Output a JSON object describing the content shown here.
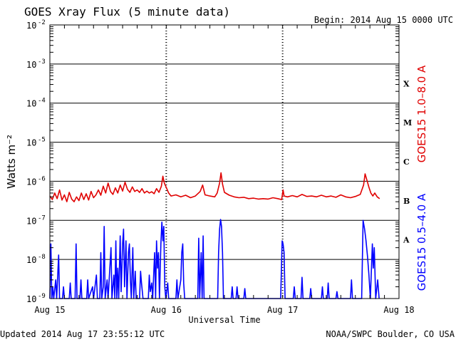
{
  "header": {
    "title": "GOES Xray Flux (5 minute data)",
    "begin": "Begin:  2014 Aug 15 0000 UTC"
  },
  "footer": {
    "updated": "Updated 2014 Aug 17 23:55:12 UTC",
    "credit": "NOAA/SWPC Boulder, CO USA"
  },
  "colors": {
    "long_channel": "#e00000",
    "short_channel": "#0000ff"
  },
  "chart_data": {
    "type": "line",
    "title": "GOES Xray Flux (5 minute data)",
    "xlabel": "Universal Time",
    "ylabel": "Watts m⁻²",
    "yscale": "log",
    "ylim": [
      1e-09,
      0.01
    ],
    "xlim": [
      0,
      72
    ],
    "x_unit": "hours since 2014 Aug 15 0000 UTC",
    "grid": true,
    "x_ticks": [
      {
        "x": 0,
        "label": "Aug 15"
      },
      {
        "x": 24,
        "label": "Aug 16"
      },
      {
        "x": 48,
        "label": "Aug 17"
      },
      {
        "x": 72,
        "label": "Aug 18"
      }
    ],
    "y_ticks": [
      {
        "exp": -2,
        "base": "10",
        "sup": "-2"
      },
      {
        "exp": -3,
        "base": "10",
        "sup": "-3"
      },
      {
        "exp": -4,
        "base": "10",
        "sup": "-4"
      },
      {
        "exp": -5,
        "base": "10",
        "sup": "-5"
      },
      {
        "exp": -6,
        "base": "10",
        "sup": "-6"
      },
      {
        "exp": -7,
        "base": "10",
        "sup": "-7"
      },
      {
        "exp": -8,
        "base": "10",
        "sup": "-8"
      },
      {
        "exp": -9,
        "base": "10",
        "sup": "-9"
      }
    ],
    "flare_classes": [
      {
        "label": "X",
        "exp": -3.5
      },
      {
        "label": "M",
        "exp": -4.5
      },
      {
        "label": "C",
        "exp": -5.5
      },
      {
        "label": "B",
        "exp": -6.5
      },
      {
        "label": "A",
        "exp": -7.5
      }
    ],
    "series": [
      {
        "name": "GOES15 1.0–8.0 A",
        "color": "#e00000",
        "points": [
          [
            0,
            4.2e-07
          ],
          [
            0.5,
            3.4e-07
          ],
          [
            1,
            5e-07
          ],
          [
            1.5,
            3.6e-07
          ],
          [
            2,
            6e-07
          ],
          [
            2.5,
            3.3e-07
          ],
          [
            3,
            4.5e-07
          ],
          [
            3.5,
            3e-07
          ],
          [
            4,
            5.2e-07
          ],
          [
            4.5,
            3.5e-07
          ],
          [
            5,
            3e-07
          ],
          [
            5.5,
            4e-07
          ],
          [
            6,
            3.2e-07
          ],
          [
            6.5,
            5e-07
          ],
          [
            7,
            3.4e-07
          ],
          [
            7.5,
            4.8e-07
          ],
          [
            8,
            3.3e-07
          ],
          [
            8.5,
            5.5e-07
          ],
          [
            9,
            3.8e-07
          ],
          [
            9.5,
            4.5e-07
          ],
          [
            10,
            6e-07
          ],
          [
            10.5,
            4.4e-07
          ],
          [
            11,
            7.5e-07
          ],
          [
            11.5,
            5e-07
          ],
          [
            12,
            9e-07
          ],
          [
            12.5,
            5.5e-07
          ],
          [
            13,
            4.6e-07
          ],
          [
            13.5,
            6.8e-07
          ],
          [
            14,
            5e-07
          ],
          [
            14.5,
            8e-07
          ],
          [
            15,
            5.6e-07
          ],
          [
            15.5,
            9.5e-07
          ],
          [
            16,
            6.2e-07
          ],
          [
            16.5,
            5.2e-07
          ],
          [
            17,
            7.2e-07
          ],
          [
            17.5,
            5.5e-07
          ],
          [
            18,
            6e-07
          ],
          [
            18.5,
            5.2e-07
          ],
          [
            19,
            6.5e-07
          ],
          [
            19.5,
            5e-07
          ],
          [
            20,
            5.6e-07
          ],
          [
            20.5,
            5e-07
          ],
          [
            21,
            5.4e-07
          ],
          [
            21.5,
            4.8e-07
          ],
          [
            22,
            6.5e-07
          ],
          [
            22.5,
            5.2e-07
          ],
          [
            23,
            7.5e-07
          ],
          [
            23.3,
            1.35e-06
          ],
          [
            23.6,
            9e-07
          ],
          [
            24,
            7e-07
          ],
          [
            24.5,
            5e-07
          ],
          [
            25,
            4.2e-07
          ],
          [
            26,
            4.5e-07
          ],
          [
            27,
            4e-07
          ],
          [
            28,
            4.4e-07
          ],
          [
            29,
            3.8e-07
          ],
          [
            30,
            4.2e-07
          ],
          [
            31,
            5.5e-07
          ],
          [
            31.5,
            8e-07
          ],
          [
            32,
            4.5e-07
          ],
          [
            33,
            4.2e-07
          ],
          [
            34,
            4e-07
          ],
          [
            34.5,
            5e-07
          ],
          [
            35,
            9e-07
          ],
          [
            35.3,
            1.65e-06
          ],
          [
            35.6,
            8.5e-07
          ],
          [
            36,
            5.2e-07
          ],
          [
            37,
            4.4e-07
          ],
          [
            38,
            4e-07
          ],
          [
            39,
            3.8e-07
          ],
          [
            40,
            3.9e-07
          ],
          [
            41,
            3.6e-07
          ],
          [
            42,
            3.7e-07
          ],
          [
            43,
            3.5e-07
          ],
          [
            44,
            3.6e-07
          ],
          [
            45,
            3.5e-07
          ],
          [
            46,
            3.8e-07
          ],
          [
            47,
            3.6e-07
          ],
          [
            47.8,
            3.4e-07
          ],
          [
            48.1,
            6e-07
          ],
          [
            48.3,
            4.2e-07
          ],
          [
            49,
            4e-07
          ],
          [
            50,
            4.3e-07
          ],
          [
            51,
            4e-07
          ],
          [
            52,
            4.6e-07
          ],
          [
            53,
            4.1e-07
          ],
          [
            54,
            4.2e-07
          ],
          [
            55,
            4e-07
          ],
          [
            56,
            4.4e-07
          ],
          [
            57,
            4e-07
          ],
          [
            58,
            4.2e-07
          ],
          [
            59,
            3.9e-07
          ],
          [
            60,
            4.5e-07
          ],
          [
            61,
            4e-07
          ],
          [
            62,
            3.8e-07
          ],
          [
            63,
            4.1e-07
          ],
          [
            64,
            4.6e-07
          ],
          [
            64.7,
            8e-07
          ],
          [
            65,
            1.55e-06
          ],
          [
            65.4,
            1.05e-06
          ],
          [
            65.8,
            7e-07
          ],
          [
            66.2,
            5e-07
          ],
          [
            66.6,
            4.2e-07
          ],
          [
            67,
            5e-07
          ],
          [
            67.5,
            4e-07
          ],
          [
            68,
            3.6e-07
          ]
        ]
      },
      {
        "name": "GOES15 0.5–4.0 A",
        "color": "#0000ff",
        "points": [
          [
            0,
            1e-09
          ],
          [
            0.2,
            2.5e-08
          ],
          [
            0.4,
            1e-09
          ],
          [
            0.6,
            2e-09
          ],
          [
            0.8,
            1e-09
          ],
          [
            1.2,
            3e-09
          ],
          [
            1.4,
            1e-09
          ],
          [
            1.8,
            1.3e-08
          ],
          [
            2.0,
            1e-09
          ],
          [
            2.6,
            1e-09
          ],
          [
            2.8,
            2e-09
          ],
          [
            3.0,
            1e-09
          ],
          [
            4.0,
            1e-09
          ],
          [
            4.2,
            2.5e-09
          ],
          [
            4.4,
            1e-09
          ],
          [
            5.2,
            1e-09
          ],
          [
            5.4,
            2.5e-08
          ],
          [
            5.6,
            1e-09
          ],
          [
            6.2,
            1e-09
          ],
          [
            6.4,
            3e-09
          ],
          [
            6.6,
            1e-09
          ],
          [
            7.6,
            1e-09
          ],
          [
            7.8,
            3e-09
          ],
          [
            8.0,
            1e-09
          ],
          [
            8.8,
            2e-09
          ],
          [
            9.0,
            1e-09
          ],
          [
            9.6,
            4e-09
          ],
          [
            9.8,
            1e-09
          ],
          [
            10.3,
            1e-09
          ],
          [
            10.5,
            1.5e-08
          ],
          [
            10.7,
            1e-09
          ],
          [
            11.0,
            2e-09
          ],
          [
            11.2,
            7e-08
          ],
          [
            11.4,
            1e-09
          ],
          [
            11.8,
            3e-09
          ],
          [
            12.0,
            1e-09
          ],
          [
            12.6,
            2e-08
          ],
          [
            12.8,
            1e-09
          ],
          [
            13.2,
            4e-09
          ],
          [
            13.4,
            1e-09
          ],
          [
            13.6,
            3e-08
          ],
          [
            13.8,
            1e-09
          ],
          [
            14.0,
            6e-09
          ],
          [
            14.2,
            1e-09
          ],
          [
            14.5,
            4e-08
          ],
          [
            14.7,
            1.5e-09
          ],
          [
            15.0,
            2.5e-08
          ],
          [
            15.2,
            6e-08
          ],
          [
            15.4,
            2e-09
          ],
          [
            15.7,
            3e-08
          ],
          [
            15.9,
            1e-09
          ],
          [
            16.2,
            1.5e-08
          ],
          [
            16.4,
            2.5e-08
          ],
          [
            16.6,
            3e-09
          ],
          [
            16.8,
            1e-09
          ],
          [
            17.1,
            2e-08
          ],
          [
            17.3,
            1e-09
          ],
          [
            17.6,
            5e-09
          ],
          [
            17.8,
            1e-09
          ],
          [
            18.5,
            1e-09
          ],
          [
            18.7,
            5e-09
          ],
          [
            18.9,
            2.5e-09
          ],
          [
            19.2,
            1e-09
          ],
          [
            20.3,
            1e-09
          ],
          [
            20.5,
            4e-09
          ],
          [
            20.7,
            1.5e-09
          ],
          [
            21.0,
            2.5e-09
          ],
          [
            21.2,
            1e-09
          ],
          [
            21.6,
            1.5e-08
          ],
          [
            21.8,
            1e-09
          ],
          [
            22.0,
            3e-08
          ],
          [
            22.2,
            6e-09
          ],
          [
            22.4,
            1.5e-08
          ],
          [
            22.6,
            1e-09
          ],
          [
            22.9,
            2.5e-08
          ],
          [
            23.1,
            9e-08
          ],
          [
            23.3,
            3e-08
          ],
          [
            23.5,
            7e-08
          ],
          [
            23.7,
            2e-09
          ],
          [
            23.9,
            1e-09
          ],
          [
            24.3,
            2.5e-09
          ],
          [
            24.5,
            1e-09
          ],
          [
            26.0,
            1e-09
          ],
          [
            26.2,
            3e-09
          ],
          [
            26.4,
            1e-09
          ],
          [
            27.0,
            3e-09
          ],
          [
            27.2,
            1.5e-08
          ],
          [
            27.4,
            2.5e-08
          ],
          [
            27.6,
            2.5e-09
          ],
          [
            27.8,
            1e-09
          ],
          [
            29.0,
            1e-09
          ],
          [
            30.5,
            1e-09
          ],
          [
            30.7,
            3.5e-08
          ],
          [
            30.9,
            1e-09
          ],
          [
            31.2,
            1.5e-08
          ],
          [
            31.4,
            1e-09
          ],
          [
            31.6,
            4e-08
          ],
          [
            31.8,
            1e-09
          ],
          [
            33.0,
            1e-09
          ],
          [
            34.6,
            1e-09
          ],
          [
            34.8,
            1.5e-08
          ],
          [
            35.0,
            6e-08
          ],
          [
            35.2,
            1.05e-07
          ],
          [
            35.4,
            7e-08
          ],
          [
            35.6,
            1.5e-08
          ],
          [
            35.8,
            1e-09
          ],
          [
            37.4,
            1e-09
          ],
          [
            37.6,
            2e-09
          ],
          [
            37.8,
            1e-09
          ],
          [
            38.4,
            1e-09
          ],
          [
            38.6,
            2e-09
          ],
          [
            38.8,
            1e-09
          ],
          [
            40.0,
            1e-09
          ],
          [
            40.2,
            1.8e-09
          ],
          [
            40.4,
            1e-09
          ],
          [
            47.6,
            1e-09
          ],
          [
            47.9,
            3e-08
          ],
          [
            48.1,
            2.5e-08
          ],
          [
            48.3,
            1.5e-08
          ],
          [
            48.5,
            1e-09
          ],
          [
            50.2,
            1e-09
          ],
          [
            50.4,
            2e-09
          ],
          [
            50.6,
            1e-09
          ],
          [
            51.8,
            1e-09
          ],
          [
            52.0,
            3.5e-09
          ],
          [
            52.2,
            1e-09
          ],
          [
            53.6,
            1e-09
          ],
          [
            53.8,
            1.8e-09
          ],
          [
            54.0,
            1e-09
          ],
          [
            56.0,
            1e-09
          ],
          [
            56.2,
            2e-09
          ],
          [
            56.4,
            1e-09
          ],
          [
            57.2,
            1e-09
          ],
          [
            57.4,
            2.5e-09
          ],
          [
            57.6,
            1e-09
          ],
          [
            59.0,
            1e-09
          ],
          [
            59.2,
            1.5e-09
          ],
          [
            59.4,
            1e-09
          ],
          [
            62.0,
            1e-09
          ],
          [
            62.2,
            3e-09
          ],
          [
            62.4,
            1e-09
          ],
          [
            64.3,
            1e-09
          ],
          [
            64.6,
            1e-07
          ],
          [
            64.9,
            6e-08
          ],
          [
            65.2,
            3e-08
          ],
          [
            65.5,
            1.2e-08
          ],
          [
            65.8,
            4e-09
          ],
          [
            66.1,
            1e-09
          ],
          [
            66.5,
            2.5e-08
          ],
          [
            66.7,
            6e-09
          ],
          [
            66.9,
            2e-08
          ],
          [
            67.2,
            1e-09
          ],
          [
            67.6,
            3e-09
          ],
          [
            67.9,
            1e-09
          ]
        ]
      }
    ]
  }
}
